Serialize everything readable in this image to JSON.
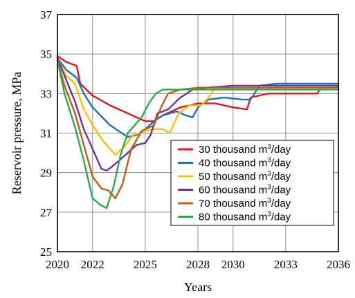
{
  "chart_data": {
    "type": "line",
    "xlabel": "Years",
    "ylabel": "Reservoir pressure, MPa",
    "xlim": [
      2020,
      2036
    ],
    "ylim": [
      25,
      37
    ],
    "x_ticks": [
      2020,
      2022,
      2025,
      2028,
      2030,
      2033,
      2036
    ],
    "y_ticks": [
      25,
      27,
      29,
      31,
      33,
      35,
      37
    ],
    "grid": true,
    "legend_position": "bottom-right",
    "legend_unit": "3",
    "series": [
      {
        "name": "30 thousand m",
        "name_suffix": "/day",
        "color": "#e0141e",
        "points": [
          [
            2020,
            34.9
          ],
          [
            2020.5,
            34.6
          ],
          [
            2021.1,
            34.4
          ],
          [
            2021.3,
            33.5
          ],
          [
            2022,
            32.9
          ],
          [
            2023,
            32.4
          ],
          [
            2024,
            32.0
          ],
          [
            2025,
            31.6
          ],
          [
            2025.5,
            31.6
          ],
          [
            2026,
            31.9
          ],
          [
            2026.5,
            32.1
          ],
          [
            2027,
            32.3
          ],
          [
            2027.5,
            32.4
          ],
          [
            2028,
            32.5
          ],
          [
            2029,
            32.5
          ],
          [
            2030,
            32.3
          ],
          [
            2030.8,
            32.2
          ],
          [
            2031,
            32.8
          ],
          [
            2032,
            33.0
          ],
          [
            2033,
            33.0
          ],
          [
            2034,
            33.0
          ],
          [
            2034.8,
            33.0
          ],
          [
            2035,
            33.3
          ],
          [
            2036,
            33.3
          ]
        ]
      },
      {
        "name": "40 thousand m",
        "name_suffix": "/day",
        "color": "#1f6fba",
        "points": [
          [
            2020,
            34.8
          ],
          [
            2020.5,
            34.2
          ],
          [
            2021.1,
            33.8
          ],
          [
            2021.5,
            33.0
          ],
          [
            2022,
            32.3
          ],
          [
            2023,
            31.4
          ],
          [
            2024,
            30.8
          ],
          [
            2024.5,
            30.9
          ],
          [
            2025,
            31.2
          ],
          [
            2025.5,
            31.6
          ],
          [
            2026,
            31.9
          ],
          [
            2026.8,
            32.1
          ],
          [
            2027.3,
            31.9
          ],
          [
            2027.7,
            31.8
          ],
          [
            2028,
            32.3
          ],
          [
            2028.6,
            32.7
          ],
          [
            2029.5,
            32.8
          ],
          [
            2030.5,
            32.7
          ],
          [
            2031,
            32.7
          ],
          [
            2031.5,
            33.4
          ],
          [
            2032.5,
            33.5
          ],
          [
            2034,
            33.5
          ],
          [
            2036,
            33.5
          ]
        ]
      },
      {
        "name": "50 thousand m",
        "name_suffix": "/day",
        "color": "#fcc000",
        "points": [
          [
            2020,
            34.8
          ],
          [
            2020.5,
            33.9
          ],
          [
            2021,
            33.5
          ],
          [
            2021.5,
            32.2
          ],
          [
            2022,
            31.4
          ],
          [
            2022.6,
            30.6
          ],
          [
            2023.3,
            29.9
          ],
          [
            2023.8,
            30.3
          ],
          [
            2024.3,
            30.9
          ],
          [
            2025,
            31.1
          ],
          [
            2025.5,
            31.2
          ],
          [
            2026,
            31.2
          ],
          [
            2026.4,
            31.0
          ],
          [
            2026.9,
            32.0
          ],
          [
            2027.5,
            32.4
          ],
          [
            2028.2,
            32.4
          ],
          [
            2028.6,
            32.8
          ],
          [
            2029,
            33.3
          ],
          [
            2030,
            33.3
          ],
          [
            2032,
            33.3
          ],
          [
            2036,
            33.3
          ]
        ]
      },
      {
        "name": "60 thousand m",
        "name_suffix": "/day",
        "color": "#7030a0",
        "points": [
          [
            2020,
            34.8
          ],
          [
            2020.4,
            33.9
          ],
          [
            2021,
            32.6
          ],
          [
            2021.5,
            31.2
          ],
          [
            2022,
            30.2
          ],
          [
            2022.5,
            29.2
          ],
          [
            2022.8,
            29.1
          ],
          [
            2023.1,
            29.3
          ],
          [
            2023.5,
            29.6
          ],
          [
            2024,
            30.0
          ],
          [
            2024.5,
            30.4
          ],
          [
            2025,
            30.5
          ],
          [
            2025.3,
            30.9
          ],
          [
            2025.7,
            32.0
          ],
          [
            2026.3,
            32.2
          ],
          [
            2027,
            32.8
          ],
          [
            2027.7,
            33.2
          ],
          [
            2028.5,
            33.3
          ],
          [
            2030,
            33.4
          ],
          [
            2033,
            33.4
          ],
          [
            2036,
            33.4
          ]
        ]
      },
      {
        "name": "70 thousand m",
        "name_suffix": "/day",
        "color": "#c55a11",
        "points": [
          [
            2020,
            34.7
          ],
          [
            2020.4,
            33.4
          ],
          [
            2021,
            32.0
          ],
          [
            2021.5,
            30.4
          ],
          [
            2022,
            28.8
          ],
          [
            2022.5,
            28.2
          ],
          [
            2022.9,
            28.1
          ],
          [
            2023.3,
            27.7
          ],
          [
            2023.7,
            28.4
          ],
          [
            2024.2,
            30.2
          ],
          [
            2024.8,
            31.1
          ],
          [
            2025.5,
            31.4
          ],
          [
            2025.9,
            32.3
          ],
          [
            2026.3,
            33.0
          ],
          [
            2027,
            33.2
          ],
          [
            2028,
            33.3
          ],
          [
            2030,
            33.3
          ],
          [
            2036,
            33.3
          ]
        ]
      },
      {
        "name": "80 thousand m",
        "name_suffix": "/day",
        "color": "#22b04b",
        "points": [
          [
            2020,
            34.7
          ],
          [
            2020.4,
            33.0
          ],
          [
            2021,
            31.3
          ],
          [
            2021.5,
            29.6
          ],
          [
            2022,
            27.7
          ],
          [
            2022.4,
            27.4
          ],
          [
            2022.8,
            27.2
          ],
          [
            2023.2,
            28.3
          ],
          [
            2023.6,
            29.9
          ],
          [
            2024,
            31.0
          ],
          [
            2024.4,
            31.4
          ],
          [
            2024.8,
            31.8
          ],
          [
            2025.2,
            32.5
          ],
          [
            2025.6,
            33.0
          ],
          [
            2026,
            33.2
          ],
          [
            2026.6,
            33.2
          ],
          [
            2028,
            33.2
          ],
          [
            2030,
            33.2
          ],
          [
            2036,
            33.2
          ]
        ]
      }
    ]
  }
}
